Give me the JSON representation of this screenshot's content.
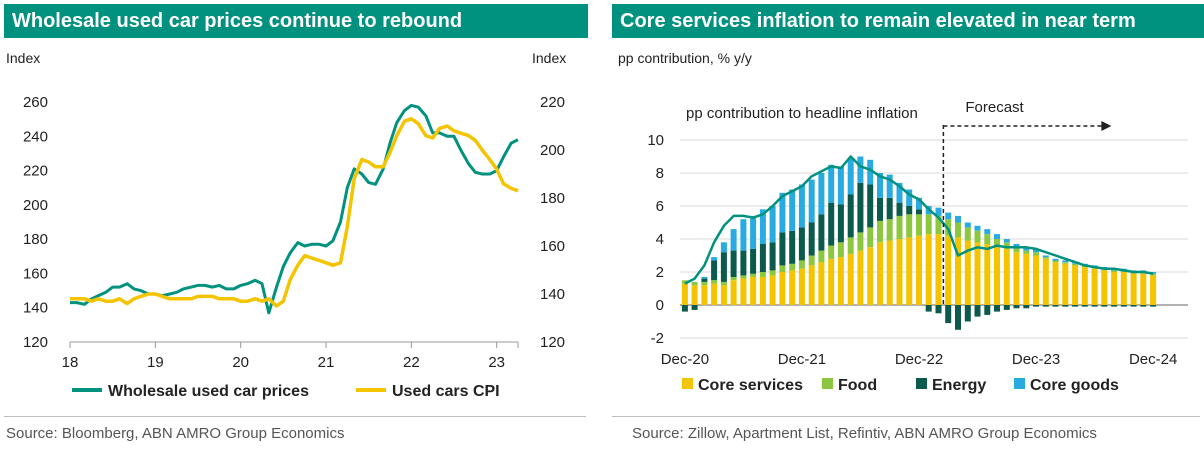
{
  "left": {
    "title": "Wholesale used car prices continue to rebound",
    "ylabel_left": "Index",
    "ylabel_right": "Index",
    "source": "Source: Bloomberg, ABN AMRO Group Economics"
  },
  "right": {
    "title": "Core services inflation to remain elevated in near term",
    "ylabel": "pp contribution, % y/y",
    "annotation": "pp contribution to headline inflation",
    "forecast_label": "Forecast",
    "source": "Source: Zillow, Apartment List, Refintiv, ABN AMRO Group Economics"
  },
  "colors": {
    "teal": "#00927f",
    "yellow": "#f5c400",
    "green": "#8dc63f",
    "dark_teal": "#0b5a4c",
    "light_blue": "#29abe2"
  },
  "chart_data": [
    {
      "type": "line",
      "title": "Wholesale used car prices continue to rebound",
      "x_ticks": [
        "18",
        "19",
        "20",
        "21",
        "22",
        "23"
      ],
      "xlim": [
        2018.0,
        2023.25
      ],
      "y_left": {
        "label": "Index",
        "lim": [
          120,
          260
        ],
        "ticks": [
          120,
          140,
          160,
          180,
          200,
          220,
          240,
          260
        ]
      },
      "y_right": {
        "label": "Index",
        "lim": [
          120,
          220
        ],
        "ticks": [
          120,
          140,
          160,
          180,
          200,
          220
        ]
      },
      "legend_position": "bottom",
      "series": [
        {
          "name": "Wholesale used car prices",
          "axis": "left",
          "color": "#00927f",
          "x": [
            2018.0,
            2018.08,
            2018.17,
            2018.25,
            2018.33,
            2018.42,
            2018.5,
            2018.58,
            2018.67,
            2018.75,
            2018.83,
            2018.92,
            2019.0,
            2019.08,
            2019.17,
            2019.25,
            2019.33,
            2019.42,
            2019.5,
            2019.58,
            2019.67,
            2019.75,
            2019.83,
            2019.92,
            2020.0,
            2020.08,
            2020.17,
            2020.25,
            2020.33,
            2020.42,
            2020.5,
            2020.58,
            2020.67,
            2020.75,
            2020.83,
            2020.92,
            2021.0,
            2021.08,
            2021.17,
            2021.25,
            2021.33,
            2021.42,
            2021.5,
            2021.58,
            2021.67,
            2021.75,
            2021.83,
            2021.92,
            2022.0,
            2022.08,
            2022.17,
            2022.25,
            2022.33,
            2022.42,
            2022.5,
            2022.58,
            2022.67,
            2022.75,
            2022.83,
            2022.92,
            2023.0,
            2023.08,
            2023.17,
            2023.25
          ],
          "values": [
            143,
            143,
            142,
            145,
            147,
            149,
            152,
            152,
            154,
            151,
            150,
            148,
            148,
            147,
            148,
            149,
            151,
            152,
            153,
            153,
            152,
            153,
            151,
            151,
            153,
            154,
            156,
            154,
            137,
            152,
            164,
            172,
            178,
            176,
            177,
            177,
            176,
            179,
            190,
            210,
            221,
            218,
            213,
            212,
            221,
            236,
            248,
            255,
            258,
            257,
            252,
            242,
            242,
            240,
            240,
            232,
            224,
            219,
            218,
            218,
            220,
            228,
            236,
            238
          ]
        },
        {
          "name": "Used cars CPI",
          "axis": "right",
          "color": "#f5c400",
          "x": [
            2018.0,
            2018.08,
            2018.17,
            2018.25,
            2018.33,
            2018.42,
            2018.5,
            2018.58,
            2018.67,
            2018.75,
            2018.83,
            2018.92,
            2019.0,
            2019.08,
            2019.17,
            2019.25,
            2019.33,
            2019.42,
            2019.5,
            2019.58,
            2019.67,
            2019.75,
            2019.83,
            2019.92,
            2020.0,
            2020.08,
            2020.17,
            2020.25,
            2020.33,
            2020.42,
            2020.5,
            2020.58,
            2020.67,
            2020.75,
            2020.83,
            2020.92,
            2021.0,
            2021.08,
            2021.17,
            2021.25,
            2021.33,
            2021.42,
            2021.5,
            2021.58,
            2021.67,
            2021.75,
            2021.83,
            2021.92,
            2022.0,
            2022.08,
            2022.17,
            2022.25,
            2022.33,
            2022.42,
            2022.5,
            2022.58,
            2022.67,
            2022.75,
            2022.83,
            2022.92,
            2023.0,
            2023.08,
            2023.17,
            2023.25
          ],
          "values": [
            138,
            138,
            138,
            137,
            138,
            137,
            137,
            138,
            136,
            138,
            139,
            140,
            140,
            139,
            138,
            138,
            138,
            138,
            139,
            139,
            139,
            138,
            138,
            138,
            137,
            137,
            138,
            137,
            138,
            135,
            137,
            146,
            152,
            156,
            155,
            154,
            153,
            152,
            153,
            168,
            188,
            196,
            195,
            193,
            193,
            199,
            206,
            212,
            213,
            211,
            206,
            205,
            209,
            210,
            208,
            207,
            206,
            204,
            200,
            196,
            192,
            186,
            184,
            183
          ]
        }
      ]
    },
    {
      "type": "bar",
      "stacked": true,
      "title": "Core services inflation to remain elevated in near term",
      "ylabel": "pp contribution, % y/y",
      "ylim": [
        -2,
        10
      ],
      "y_ticks": [
        -2,
        0,
        2,
        4,
        6,
        8,
        10
      ],
      "x_ticks": [
        "Dec-20",
        "Dec-21",
        "Dec-22",
        "Dec-23",
        "Dec-24"
      ],
      "forecast_start_index": 27,
      "legend_position": "bottom",
      "categories": [
        "Dec-20",
        "Jan-21",
        "Feb-21",
        "Mar-21",
        "Apr-21",
        "May-21",
        "Jun-21",
        "Jul-21",
        "Aug-21",
        "Sep-21",
        "Oct-21",
        "Nov-21",
        "Dec-21",
        "Jan-22",
        "Feb-22",
        "Mar-22",
        "Apr-22",
        "May-22",
        "Jun-22",
        "Jul-22",
        "Aug-22",
        "Sep-22",
        "Oct-22",
        "Nov-22",
        "Dec-22",
        "Jan-23",
        "Feb-23",
        "Mar-23",
        "Apr-23",
        "May-23",
        "Jun-23",
        "Jul-23",
        "Aug-23",
        "Sep-23",
        "Oct-23",
        "Nov-23",
        "Dec-23",
        "Jan-24",
        "Feb-24",
        "Mar-24",
        "Apr-24",
        "May-24",
        "Jun-24",
        "Jul-24",
        "Aug-24",
        "Sep-24",
        "Oct-24",
        "Nov-24",
        "Dec-24"
      ],
      "series": [
        {
          "name": "Core services",
          "color": "#f5c400",
          "values": [
            1.3,
            1.2,
            1.2,
            1.3,
            1.2,
            1.5,
            1.6,
            1.7,
            1.7,
            1.8,
            2.0,
            2.1,
            2.2,
            2.4,
            2.6,
            2.8,
            2.9,
            3.1,
            3.3,
            3.5,
            3.8,
            3.9,
            4.0,
            4.1,
            4.2,
            4.3,
            4.3,
            4.2,
            4.1,
            3.9,
            3.8,
            3.7,
            3.5,
            3.4,
            3.2,
            3.1,
            3.0,
            2.8,
            2.6,
            2.5,
            2.4,
            2.3,
            2.2,
            2.1,
            2.0,
            2.0,
            1.9,
            1.9,
            1.8
          ]
        },
        {
          "name": "Food",
          "color": "#8dc63f",
          "values": [
            0.2,
            0.2,
            0.2,
            0.2,
            0.2,
            0.2,
            0.2,
            0.2,
            0.3,
            0.3,
            0.4,
            0.4,
            0.5,
            0.6,
            0.7,
            0.8,
            0.9,
            1.0,
            1.1,
            1.2,
            1.3,
            1.3,
            1.4,
            1.4,
            1.3,
            1.2,
            1.1,
            1.0,
            0.9,
            0.8,
            0.7,
            0.6,
            0.5,
            0.4,
            0.3,
            0.2,
            0.2,
            0.1,
            0.1,
            0.1,
            0.1,
            0.1,
            0.1,
            0.1,
            0.1,
            0.1,
            0.1,
            0.1,
            0.1
          ]
        },
        {
          "name": "Energy",
          "color": "#0b5a4c",
          "values": [
            -0.4,
            -0.3,
            0.2,
            1.2,
            1.8,
            1.6,
            1.5,
            1.5,
            1.7,
            1.7,
            2.0,
            2.0,
            2.0,
            2.0,
            2.2,
            2.6,
            2.3,
            2.6,
            3.0,
            2.6,
            1.4,
            1.3,
            0.8,
            0.5,
            0.3,
            -0.4,
            -0.5,
            -1.1,
            -1.5,
            -1.0,
            -0.7,
            -0.6,
            -0.4,
            -0.3,
            -0.2,
            -0.2,
            -0.1,
            -0.1,
            -0.1,
            -0.1,
            -0.1,
            -0.1,
            -0.1,
            -0.1,
            -0.1,
            -0.1,
            -0.1,
            -0.1,
            -0.1
          ]
        },
        {
          "name": "Core goods",
          "color": "#29abe2",
          "values": [
            0.0,
            0.0,
            0.1,
            0.2,
            0.6,
            1.3,
            1.9,
            2.0,
            2.1,
            2.2,
            2.4,
            2.5,
            2.6,
            2.6,
            2.5,
            2.3,
            2.3,
            2.2,
            1.6,
            1.5,
            1.5,
            1.4,
            1.2,
            1.0,
            0.7,
            0.5,
            0.5,
            0.4,
            0.4,
            0.3,
            0.3,
            0.3,
            0.3,
            0.2,
            0.2,
            0.2,
            0.2,
            0.1,
            0.1,
            0.1,
            0.1,
            0.1,
            0.1,
            0.1,
            0.1,
            0.1,
            0.1,
            0.1,
            0.1
          ]
        },
        {
          "name": "pp contribution to headline inflation",
          "type": "line",
          "color": "#00927f",
          "values": [
            1.3,
            1.6,
            2.4,
            3.8,
            4.8,
            5.4,
            5.4,
            5.3,
            5.5,
            6.0,
            6.6,
            6.9,
            7.2,
            7.8,
            8.1,
            8.4,
            8.3,
            9.0,
            8.4,
            8.2,
            7.8,
            7.6,
            7.2,
            6.7,
            6.4,
            5.8,
            5.3,
            4.6,
            3.0,
            3.3,
            3.5,
            3.4,
            3.6,
            3.5,
            3.5,
            3.5,
            3.4,
            3.2,
            3.0,
            2.8,
            2.6,
            2.4,
            2.3,
            2.2,
            2.2,
            2.1,
            2.0,
            2.0,
            1.9
          ]
        }
      ]
    }
  ]
}
